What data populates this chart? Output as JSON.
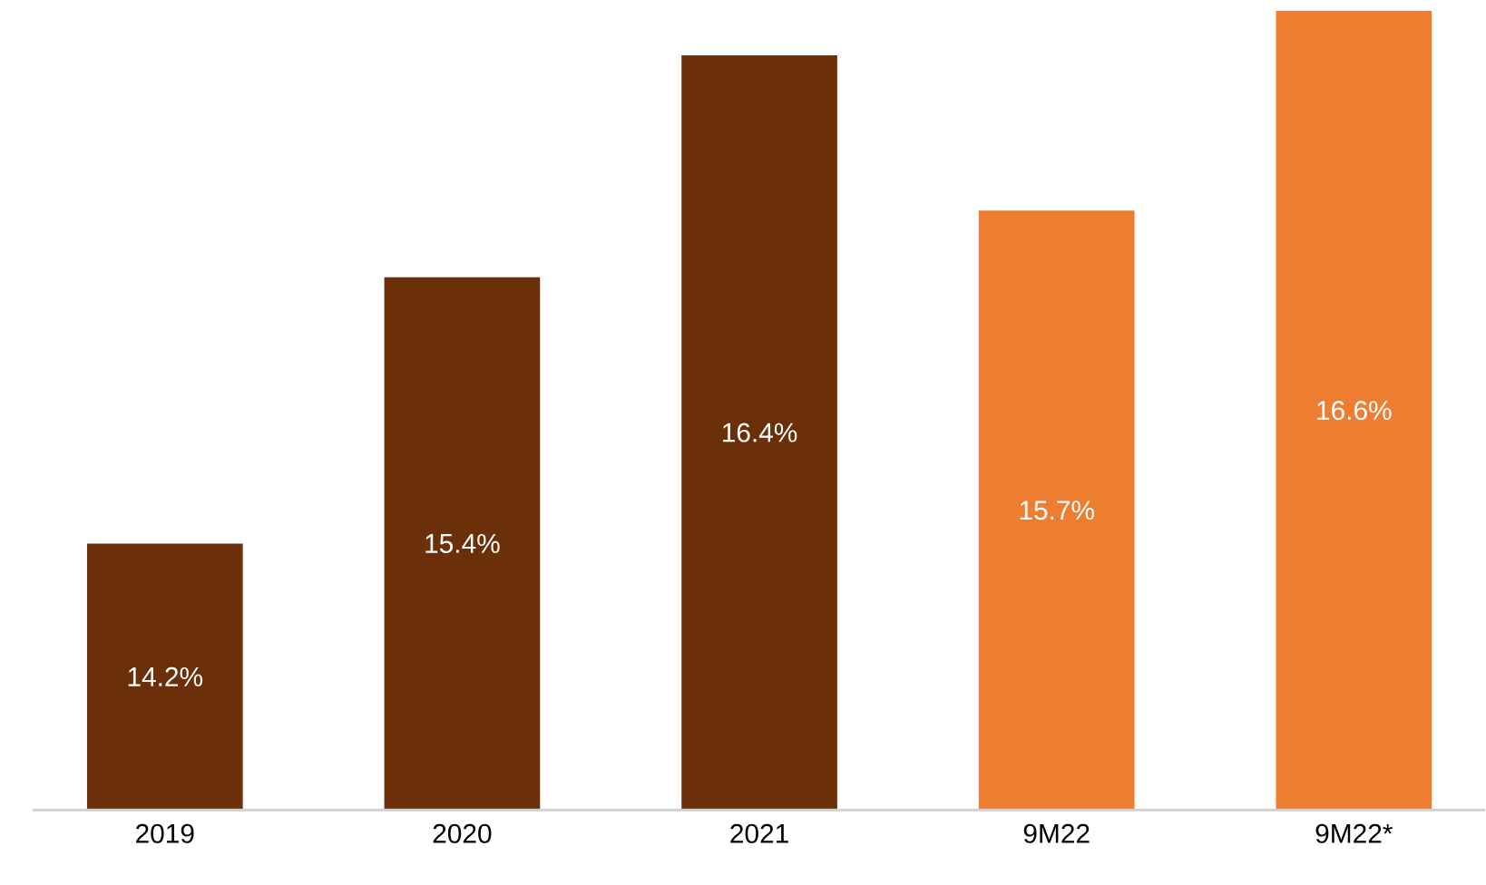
{
  "chart_data": {
    "type": "bar",
    "categories": [
      "2019",
      "2020",
      "2021",
      "9M22",
      "9M22*"
    ],
    "values": [
      14.2,
      15.4,
      16.4,
      15.7,
      16.6
    ],
    "value_labels": [
      "14.2%",
      "15.4%",
      "16.4%",
      "15.7%",
      "16.6%"
    ],
    "colors": [
      "#6b300a",
      "#6b300a",
      "#6b300a",
      "#ed7d31",
      "#ed7d31"
    ],
    "ylim": [
      13,
      16.6
    ]
  }
}
